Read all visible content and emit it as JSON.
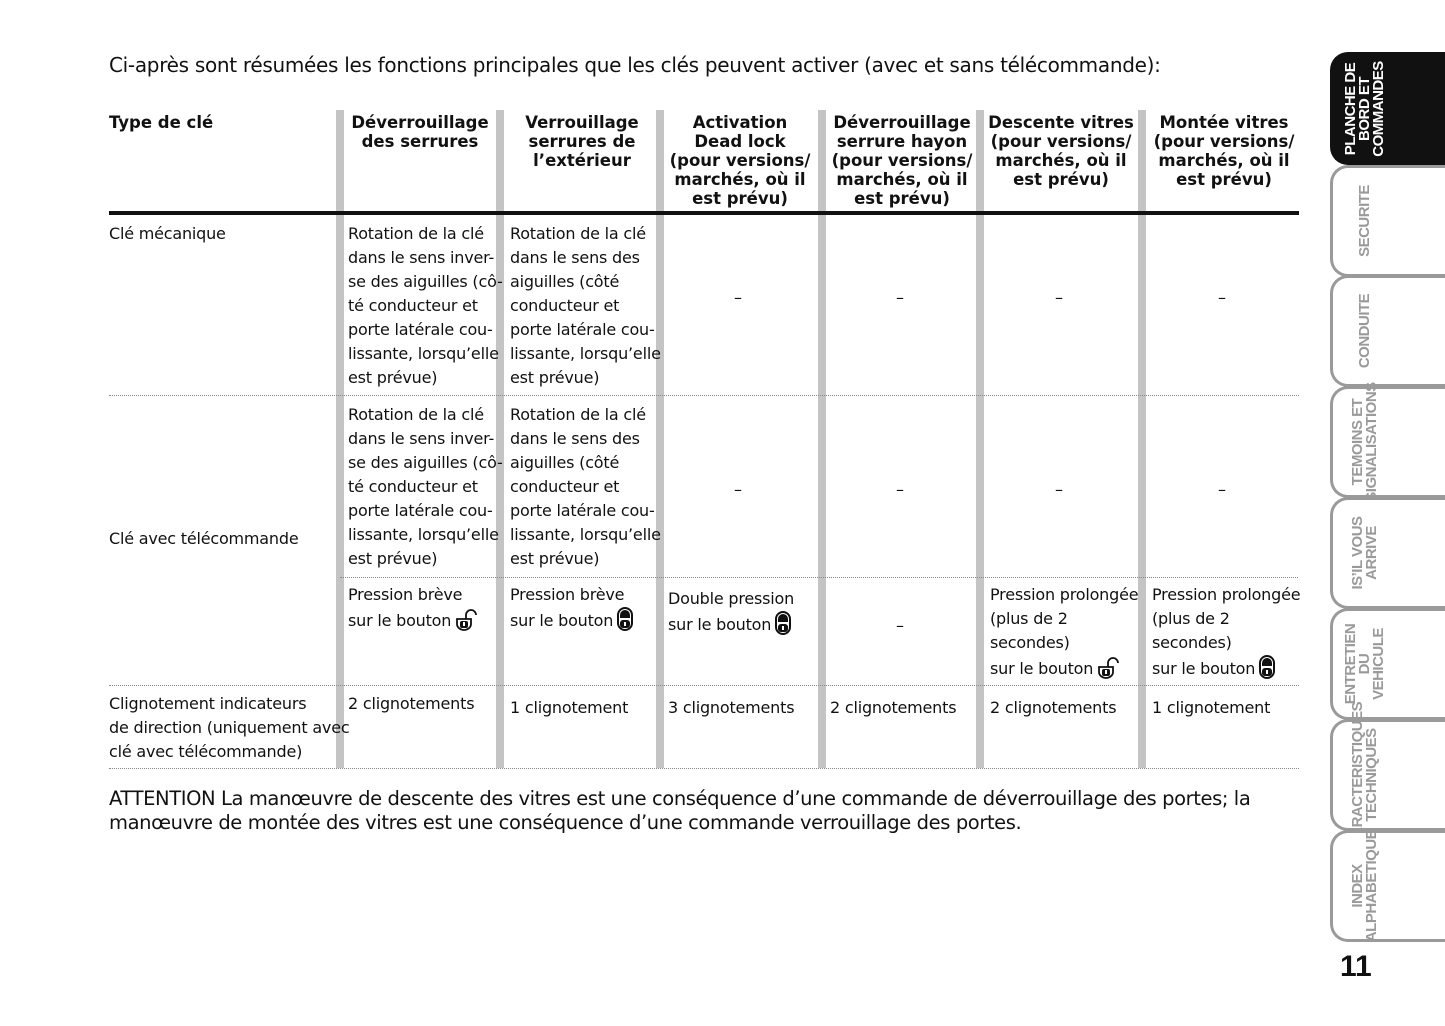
{
  "intro": "Ci-après sont résumées les fonctions principales que les clés peuvent activer (avec et sans télécommande):",
  "table": {
    "headers": [
      "Type de clé",
      "Déverrouillage\ndes serrures",
      "Verrouillage\nserrures de\nl’extérieur",
      "Activation\nDead lock\n(pour versions/\nmarchés, où il\nest prévu)",
      "Déverrouillage\nserrure hayon\n(pour versions/\nmarchés, où il\nest prévu)",
      "Descente vitres\n(pour versions/\nmarchés, où il\nest prévu)",
      "Montée vitres\n(pour versions/\nmarchés, où il\nest prévu)"
    ],
    "row_labels": [
      "Clé mécanique",
      "Clé avec télécommande",
      "Clignotement indicateurs\nde direction (uniquement avec\nclé avec télécommande)"
    ],
    "rows": [
      {
        "cells": [
          {
            "text": "Rotation de la clé\ndans le sens inver-\nse des aiguilles (cô-\nté conducteur et\nporte latérale cou-\nlissante, lorsqu’elle\nest prévue)"
          },
          {
            "text": "Rotation de la clé\ndans le sens des\naiguilles (côté\nconducteur et\nporte latérale cou-\nlissante, lorsqu’elle\nest prévue)"
          },
          {
            "text": "–"
          },
          {
            "text": "–"
          },
          {
            "text": "–"
          },
          {
            "text": "–"
          }
        ]
      },
      {
        "cells": [
          {
            "text": "Rotation de la clé\ndans le sens inver-\nse des aiguilles (cô-\nté conducteur et\nporte latérale cou-\nlissante, lorsqu’elle\nest prévue)"
          },
          {
            "text": "Rotation de la clé\ndans le sens des\naiguilles (côté\nconducteur et\nporte latérale cou-\nlissante, lorsqu’elle\nest prévue)"
          },
          {
            "text": "–"
          },
          {
            "text": "–"
          },
          {
            "text": "–"
          },
          {
            "text": "–"
          }
        ]
      },
      {
        "cells": [
          {
            "text": "Pression brève\nsur le bouton",
            "icon": "unlock-button-icon"
          },
          {
            "text": "Pression brève\nsur le bouton",
            "icon": "lock-button-icon"
          },
          {
            "text": "Double pression\nsur le bouton",
            "icon": "lock-button-icon"
          },
          {
            "text": "–"
          },
          {
            "text": "Pression prolongée\n(plus de 2\nsecondes)\nsur le bouton",
            "icon": "unlock-button-icon"
          },
          {
            "text": "Pression prolongée\n(plus de 2\nsecondes)\nsur le bouton",
            "icon": "lock-button-icon"
          }
        ]
      },
      {
        "cells": [
          {
            "text": "2 clignotements"
          },
          {
            "text": "1 clignotement"
          },
          {
            "text": "3 clignotements"
          },
          {
            "text": "2 clignotements"
          },
          {
            "text": "2 clignotements"
          },
          {
            "text": "1 clignotement"
          }
        ]
      }
    ]
  },
  "attention": "ATTENTION La manœuvre de descente des vitres est une conséquence d’une commande de déverrouillage des portes; la manœuvre de montée des vitres est une conséquence d’une commande verrouillage des portes.",
  "tabs": [
    {
      "label": "PLANCHE DE\nBORD ET\nCOMMANDES",
      "active": true
    },
    {
      "label": "SECURITE"
    },
    {
      "label": "CONDUITE"
    },
    {
      "label": "TEMOINS ET\nSIGNALISATIONS"
    },
    {
      "label": "IS’IL VOUS\nARRIVE"
    },
    {
      "label": "ENTRETIEN DU\nVEHICULE"
    },
    {
      "label": "CARACTERISTIQUES\nTECHNIQUES"
    },
    {
      "label": "INDEX\nALPHABETIQUE"
    }
  ],
  "page_number": "11"
}
